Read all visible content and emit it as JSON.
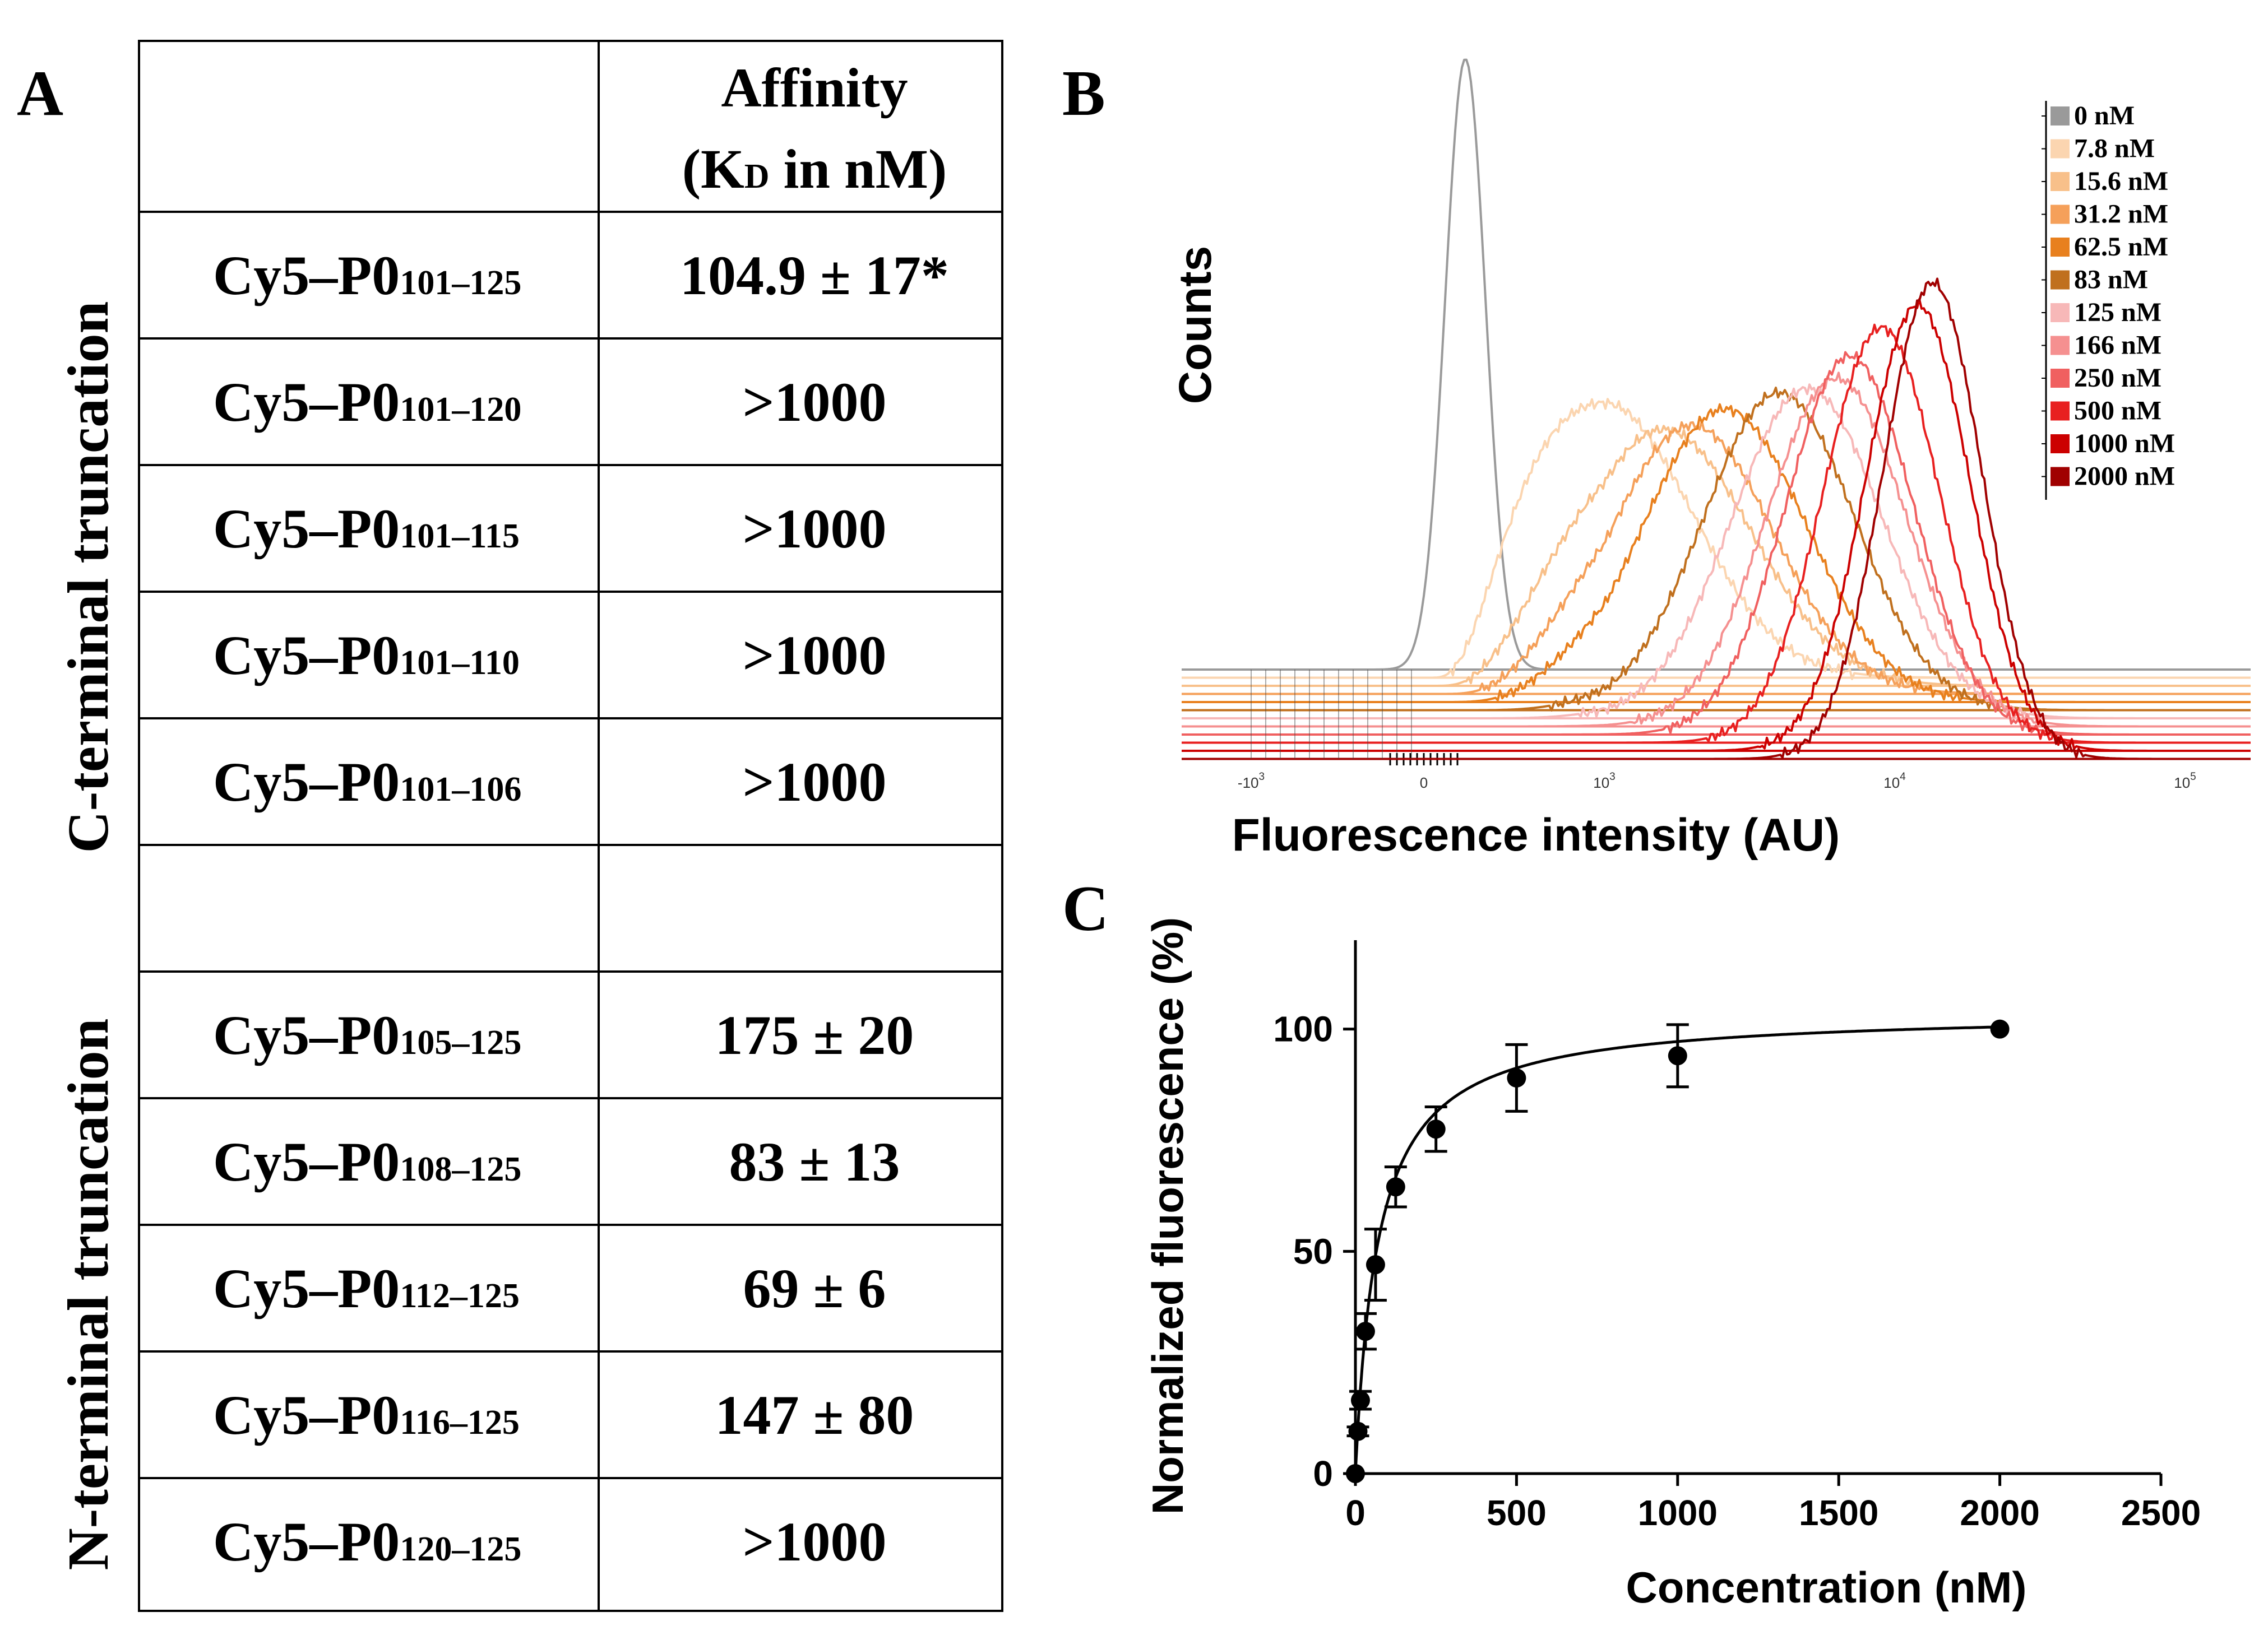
{
  "panels": {
    "a": "A",
    "b": "B",
    "c": "C"
  },
  "panel_a": {
    "header_affinity": "Affinity",
    "header_kd_open": "(K",
    "header_kd_sub": "D",
    "header_kd_close": " in nM)",
    "group_c": "C-terminal truncation",
    "group_n": "N-terminal truncation",
    "peptide_prefix": "Cy5–P0",
    "c_rows": [
      {
        "range": "101–125",
        "value": "104.9 ± 17*"
      },
      {
        "range": "101–120",
        "value": ">1000"
      },
      {
        "range": "101–115",
        "value": ">1000"
      },
      {
        "range": "101–110",
        "value": ">1000"
      },
      {
        "range": "101–106",
        "value": ">1000"
      }
    ],
    "n_rows": [
      {
        "range": "105–125",
        "value": "175 ± 20"
      },
      {
        "range": "108–125",
        "value": "83 ± 13"
      },
      {
        "range": "112–125",
        "value": "69 ± 6"
      },
      {
        "range": "116–125",
        "value": "147 ± 80"
      },
      {
        "range": "120–125",
        "value": ">1000"
      }
    ]
  },
  "chart_data": [
    {
      "type": "line",
      "panel": "B",
      "title": "",
      "xlabel": "Fluorescence intensity (AU)",
      "ylabel": "Counts",
      "x_scale": "biexponential",
      "x_ticks": [
        {
          "base": "-10",
          "exp": "3",
          "value": -1000
        },
        {
          "base": "0",
          "exp": "",
          "value": 0
        },
        {
          "base": "10",
          "exp": "3",
          "value": 1000
        },
        {
          "base": "10",
          "exp": "4",
          "value": 10000
        },
        {
          "base": "10",
          "exp": "5",
          "value": 100000
        }
      ],
      "legend_position": "top-right",
      "series": [
        {
          "name": "0 nM",
          "color": "#9a9a9a",
          "peak": 230,
          "width": 0.1,
          "height": 1.0
        },
        {
          "name": "7.8 nM",
          "color": "#fbd5b0",
          "peak": 1000,
          "width": 0.3,
          "height": 0.45
        },
        {
          "name": "15.6 nM",
          "color": "#f8c08a",
          "peak": 1600,
          "width": 0.3,
          "height": 0.42
        },
        {
          "name": "31.2 nM",
          "color": "#f5a05a",
          "peak": 2000,
          "width": 0.28,
          "height": 0.44
        },
        {
          "name": "62.5 nM",
          "color": "#e8801e",
          "peak": 2600,
          "width": 0.28,
          "height": 0.48
        },
        {
          "name": "83 nM",
          "color": "#c0701e",
          "peak": 4000,
          "width": 0.26,
          "height": 0.52
        },
        {
          "name": "125 nM",
          "color": "#f7b8b8",
          "peak": 5000,
          "width": 0.26,
          "height": 0.54
        },
        {
          "name": "166 nM",
          "color": "#f59090",
          "peak": 6300,
          "width": 0.24,
          "height": 0.57
        },
        {
          "name": "250 nM",
          "color": "#f06060",
          "peak": 7000,
          "width": 0.22,
          "height": 0.62
        },
        {
          "name": "500 nM",
          "color": "#e82020",
          "peak": 9000,
          "width": 0.2,
          "height": 0.68
        },
        {
          "name": "1000 nM",
          "color": "#cc0000",
          "peak": 12000,
          "width": 0.18,
          "height": 0.73
        },
        {
          "name": "2000 nM",
          "color": "#a00000",
          "peak": 13500,
          "width": 0.17,
          "height": 0.78
        }
      ]
    },
    {
      "type": "scatter",
      "panel": "C",
      "title": "",
      "xlabel": "Concentration (nM)",
      "ylabel": "Normalized fluorescence (%)",
      "xlim": [
        0,
        2500
      ],
      "ylim": [
        0,
        120
      ],
      "x_ticks": [
        0,
        500,
        1000,
        1500,
        2000,
        2500
      ],
      "y_ticks": [
        0,
        50,
        100
      ],
      "points": [
        {
          "x": 0,
          "y": 0,
          "err": 0
        },
        {
          "x": 7.8,
          "y": 9.5,
          "err": 1
        },
        {
          "x": 15.6,
          "y": 16.5,
          "err": 2
        },
        {
          "x": 31.2,
          "y": 32,
          "err": 4
        },
        {
          "x": 62.5,
          "y": 47,
          "err": 8
        },
        {
          "x": 125,
          "y": 64.5,
          "err": 4.5
        },
        {
          "x": 250,
          "y": 77.5,
          "err": 5
        },
        {
          "x": 500,
          "y": 89,
          "err": 7.5
        },
        {
          "x": 1000,
          "y": 94,
          "err": 7
        },
        {
          "x": 2000,
          "y": 100,
          "err": 0
        }
      ],
      "fit": {
        "model": "one-site binding",
        "bmax": 104,
        "kd": 70
      }
    }
  ]
}
